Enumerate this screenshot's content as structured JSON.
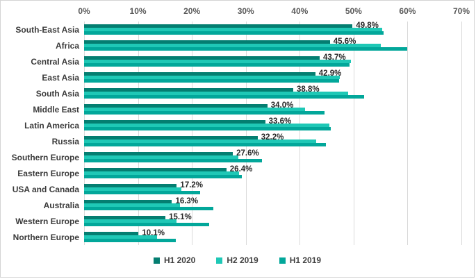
{
  "chart_data": {
    "type": "bar",
    "orientation": "horizontal",
    "title": "",
    "categories": [
      "South-East Asia",
      "Africa",
      "Central Asia",
      "East Asia",
      "South Asia",
      "Middle East",
      "Latin America",
      "Russia",
      "Southern Europe",
      "Eastern Europe",
      "USA and Canada",
      "Australia",
      "Western Europe",
      "Northern Europe"
    ],
    "series": [
      {
        "name": "H1 2020",
        "color": "#047e71",
        "values": [
          49.8,
          45.6,
          43.7,
          42.9,
          38.8,
          34.0,
          33.6,
          32.2,
          27.6,
          26.4,
          17.2,
          16.3,
          15.1,
          10.1
        ]
      },
      {
        "name": "H2 2019",
        "color": "#1fc8b6",
        "values": [
          55.3,
          55.0,
          49.5,
          47.5,
          49.0,
          41.0,
          45.5,
          43.1,
          28.6,
          28.8,
          18.0,
          17.8,
          17.2,
          13.5
        ]
      },
      {
        "name": "H1 2019",
        "color": "#02a79a",
        "values": [
          55.5,
          59.9,
          49.3,
          47.3,
          52.0,
          44.6,
          45.8,
          44.8,
          33.0,
          29.3,
          21.5,
          24.0,
          23.2,
          17.0
        ]
      }
    ],
    "data_labels": [
      "49.8%",
      "45.6%",
      "43.7%",
      "42.9%",
      "38.8%",
      "34.0%",
      "33.6%",
      "32.2%",
      "27.6%",
      "26.4%",
      "17.2%",
      "16.3%",
      "15.1%",
      "10.1%"
    ],
    "data_labels_series": "H1 2020",
    "x_axis": {
      "position": "top",
      "min": 0,
      "max": 70,
      "ticks": [
        "0%",
        "10%",
        "20%",
        "30%",
        "40%",
        "50%",
        "60%",
        "70%"
      ]
    },
    "grid": true,
    "legend_position": "bottom",
    "colors": {
      "gridline": "#d9d9d9",
      "tick_text": "#595959",
      "category_text": "#3b3b3b",
      "data_label_text": "#262626",
      "border": "#d4d4d4"
    }
  }
}
